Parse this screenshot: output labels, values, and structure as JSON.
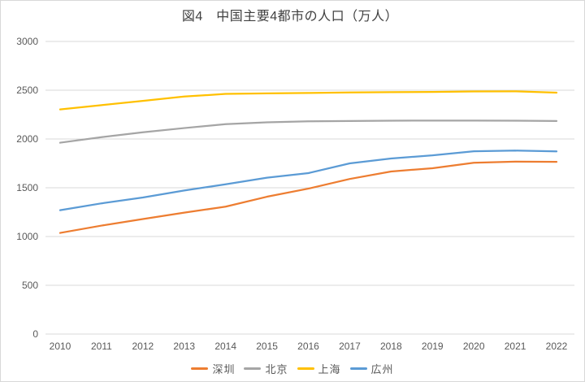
{
  "chart": {
    "title": "図4　中国主要4都市の人口（万人）"
  },
  "colors": {
    "background": "#FFFFFF",
    "border": "#D8D8D8",
    "gridline": "#D9D9D9",
    "axis_text": "#595959",
    "title_text": "#404040",
    "legend_text": "#595959"
  },
  "chart_data": {
    "type": "line",
    "title": "図4　中国主要4都市の人口（万人）",
    "xlabel": "",
    "ylabel": "",
    "x": [
      2010,
      2011,
      2012,
      2013,
      2014,
      2015,
      2016,
      2017,
      2018,
      2019,
      2020,
      2021,
      2022
    ],
    "series": [
      {
        "id": "shenzhen",
        "name": "深圳",
        "color": "#ED7D31",
        "values": [
          1037,
          1112,
          1179,
          1245,
          1306,
          1408,
          1491,
          1590,
          1667,
          1700,
          1756,
          1768,
          1766
        ]
      },
      {
        "id": "beijing",
        "name": "北京",
        "color": "#A5A5A5",
        "values": [
          1962,
          2019,
          2069,
          2112,
          2152,
          2171,
          2181,
          2184,
          2187,
          2189,
          2189,
          2188,
          2184
        ]
      },
      {
        "id": "shanghai",
        "name": "上海",
        "color": "#FFC000",
        "values": [
          2303,
          2347,
          2391,
          2435,
          2462,
          2468,
          2472,
          2477,
          2480,
          2482,
          2487,
          2489,
          2475
        ]
      },
      {
        "id": "guangzhou",
        "name": "広州",
        "color": "#5B9BD5",
        "values": [
          1270,
          1340,
          1400,
          1472,
          1535,
          1603,
          1650,
          1750,
          1800,
          1832,
          1874,
          1881,
          1873
        ]
      }
    ],
    "ylim": [
      0,
      3000
    ],
    "ytick_step": 500,
    "grid": "horizontal",
    "legend_position": "bottom"
  }
}
